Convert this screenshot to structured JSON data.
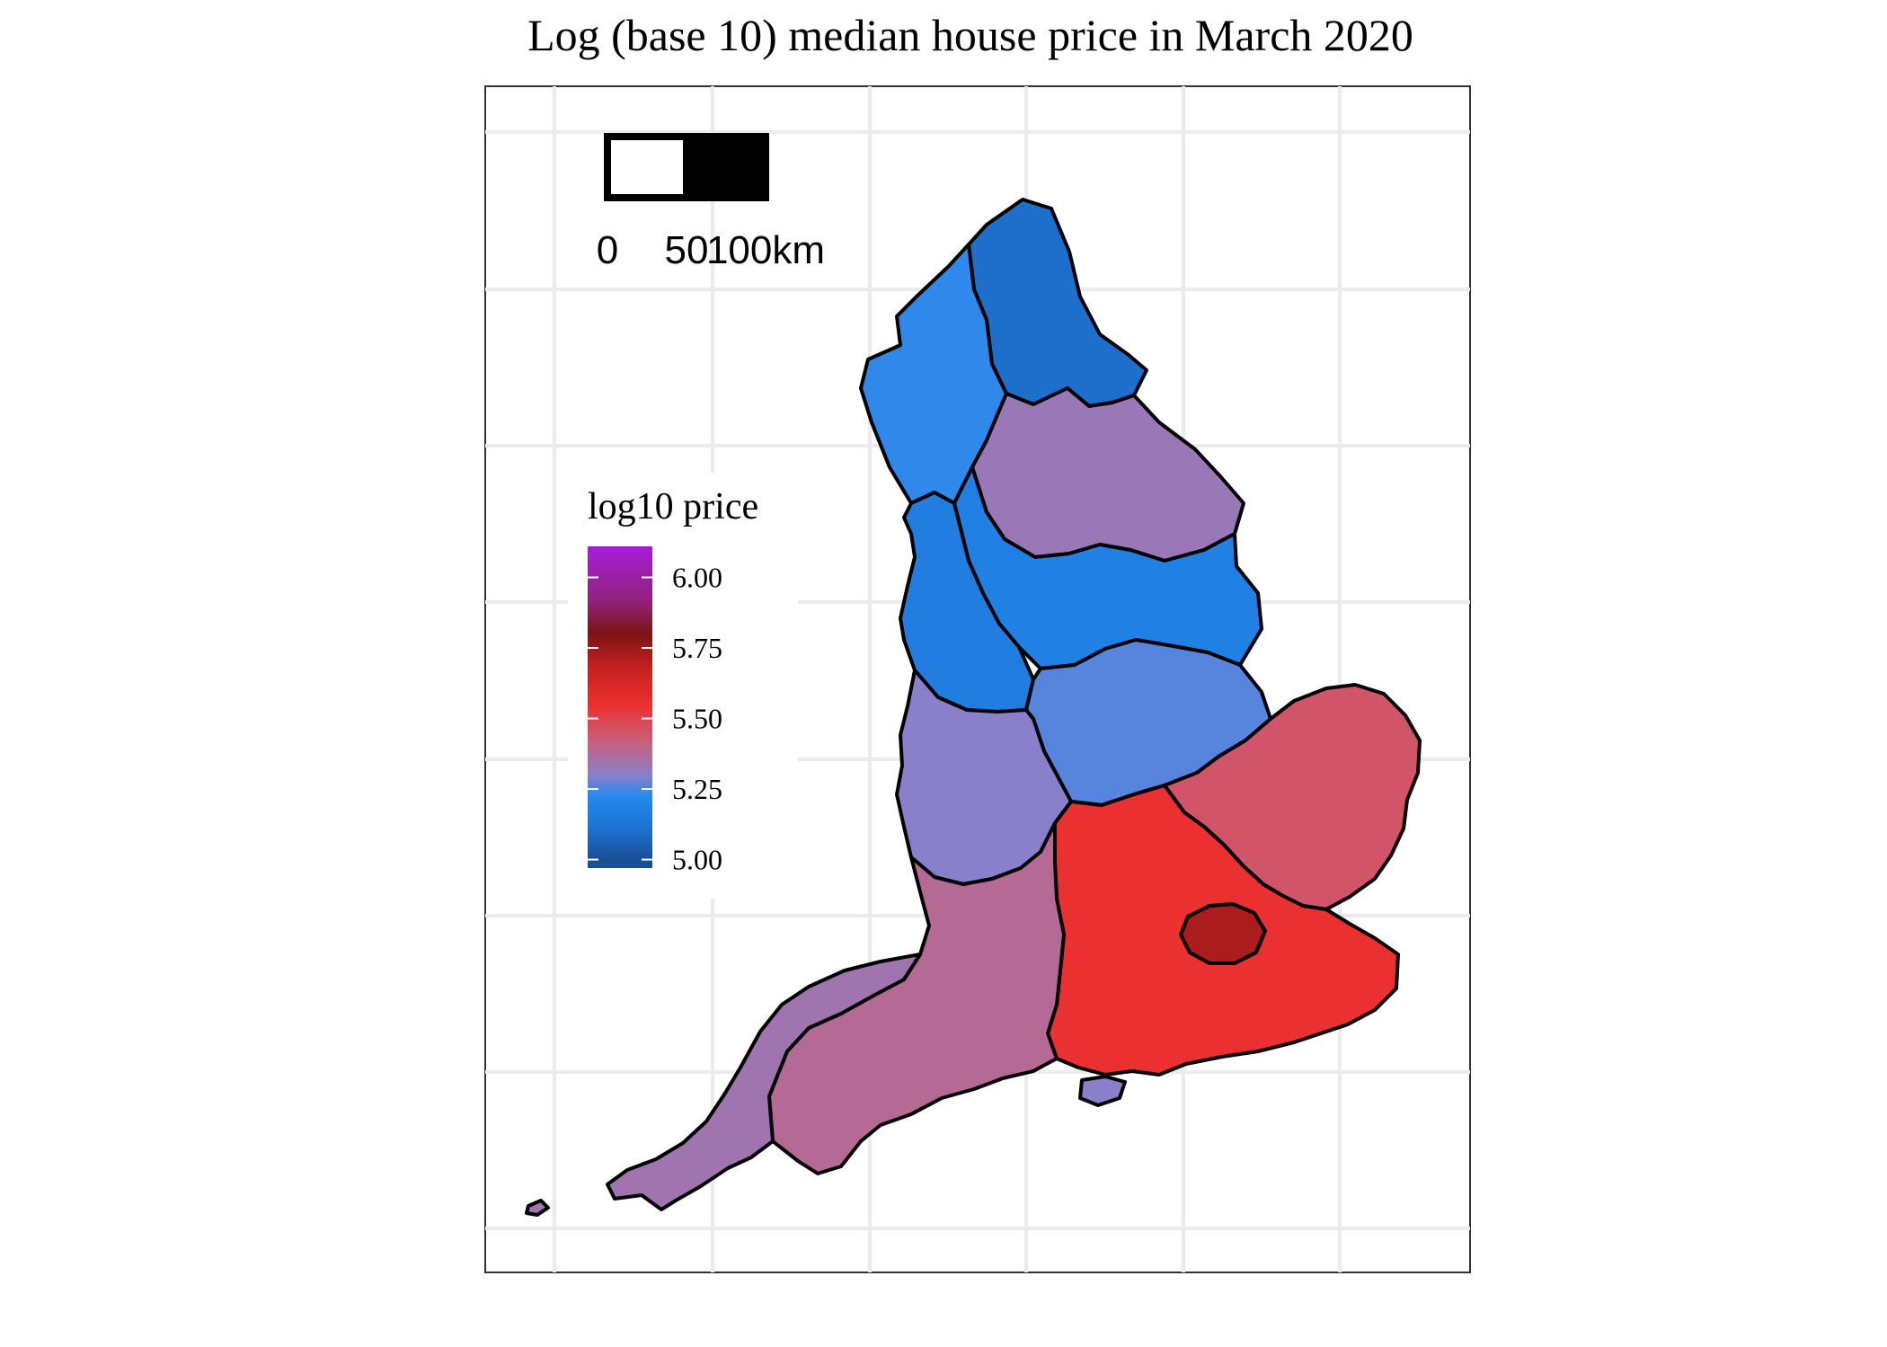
{
  "title": "Log (base 10) median house price in March 2020",
  "scalebar": {
    "labels": [
      "0",
      "50",
      "100km"
    ],
    "segment_colors": [
      "#ffffff",
      "#000000"
    ]
  },
  "legend": {
    "title": "log10 price",
    "position": "left, inside panel",
    "range": [
      4.97,
      6.11
    ],
    "breaks": [
      6.0,
      5.75,
      5.5,
      5.25,
      5.0
    ],
    "break_labels": [
      "6.00",
      "5.75",
      "5.50",
      "5.25",
      "5.00"
    ],
    "colors": [
      {
        "value": 5.0,
        "hex": "#1a4f96"
      },
      {
        "value": 5.1,
        "hex": "#1d6fcb"
      },
      {
        "value": 5.22,
        "hex": "#2389ef"
      },
      {
        "value": 5.3,
        "hex": "#8a7fca"
      },
      {
        "value": 5.42,
        "hex": "#c95f7a"
      },
      {
        "value": 5.55,
        "hex": "#ea3030"
      },
      {
        "value": 5.68,
        "hex": "#c62020"
      },
      {
        "value": 5.8,
        "hex": "#7c1414"
      },
      {
        "value": 5.92,
        "hex": "#92227a"
      },
      {
        "value": 6.11,
        "hex": "#a51ed8"
      }
    ]
  },
  "map": {
    "background": "#ffffff",
    "grid": true,
    "grid_color": "#ebebeb",
    "border_color": "#000000",
    "regions": [
      {
        "name": "North East",
        "log10_price": 5.1
      },
      {
        "name": "Cumbria",
        "log10_price": 5.23
      },
      {
        "name": "North Yorkshire",
        "log10_price": 5.33
      },
      {
        "name": "Yorkshire and the Humber",
        "log10_price": 5.18
      },
      {
        "name": "North West",
        "log10_price": 5.17
      },
      {
        "name": "East Midlands",
        "log10_price": 5.26
      },
      {
        "name": "West Midlands",
        "log10_price": 5.3
      },
      {
        "name": "East of England",
        "log10_price": 5.45
      },
      {
        "name": "London",
        "log10_price": 5.72
      },
      {
        "name": "South East",
        "log10_price": 5.55
      },
      {
        "name": "South West",
        "log10_price": 5.38
      },
      {
        "name": "Cornwall",
        "log10_price": 5.34
      },
      {
        "name": "Isle of Wight",
        "log10_price": 5.3
      }
    ]
  }
}
